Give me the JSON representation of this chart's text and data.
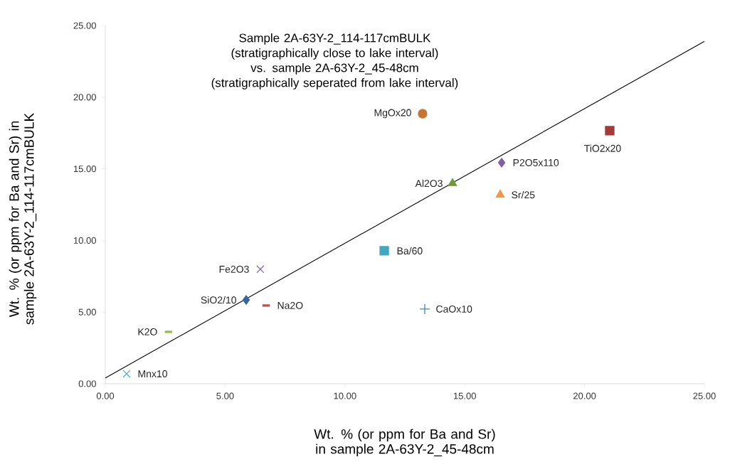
{
  "chart_data": {
    "type": "scatter",
    "title": "Sample 2A-63Y-2_114-117cmBULK (stratigraphically close to lake interval) vs. sample 2A-63Y-2_45-48cm (stratigraphically seperated from lake interval)",
    "xlabel": "Wt. % (or ppm for Ba and Sr) in sample  2A-63Y-2_45-48cm",
    "ylabel": "Wt. % (or ppm for Ba and Sr) in sample  2A-63Y-2_114-117cmBULK",
    "xlim": [
      0,
      25
    ],
    "ylim": [
      0,
      25
    ],
    "xticks": [
      {
        "value": 0,
        "label": "0.00"
      },
      {
        "value": 5,
        "label": "5.00"
      },
      {
        "value": 10,
        "label": "10.00"
      },
      {
        "value": 15,
        "label": "15.00"
      },
      {
        "value": 20,
        "label": "20.00"
      },
      {
        "value": 25,
        "label": "25.00"
      }
    ],
    "yticks": [
      {
        "value": 0,
        "label": "0.00"
      },
      {
        "value": 5,
        "label": "5.00"
      },
      {
        "value": 10,
        "label": "10.00"
      },
      {
        "value": 15,
        "label": "15.00"
      },
      {
        "value": 20,
        "label": "20.00"
      },
      {
        "value": 25,
        "label": "25.00"
      }
    ],
    "grid": false,
    "series": [
      {
        "name": "SiO2/10",
        "color": "#35669d",
        "marker": "diamond",
        "x": [
          5.88
        ],
        "values": [
          5.85
        ]
      },
      {
        "name": "Al2O3",
        "color": "#6e9a3a",
        "marker": "triangle",
        "x": [
          14.49
        ],
        "values": [
          13.99
        ]
      },
      {
        "name": "Fe2O3",
        "color": "#8064a2",
        "marker": "cross",
        "x": [
          6.47
        ],
        "values": [
          7.99
        ]
      },
      {
        "name": "MgOx20",
        "color": "#c87533",
        "marker": "circle",
        "x": [
          13.24
        ],
        "values": [
          18.85
        ]
      },
      {
        "name": "CaOx10",
        "color": "#4f81bd",
        "marker": "plus",
        "x": [
          13.33
        ],
        "values": [
          5.21
        ]
      },
      {
        "name": "Na2O",
        "color": "#c0504d",
        "x": [
          6.71
        ],
        "values": [
          5.46
        ]
      },
      {
        "name": "K2O",
        "color": "#9bbb59",
        "x": [
          2.64
        ],
        "values": [
          3.62
        ]
      },
      {
        "name": "TiO2x20",
        "color": "#a33b3b",
        "marker": "square",
        "x": [
          21.05
        ],
        "values": [
          17.66
        ]
      },
      {
        "name": "P2O5x110",
        "color": "#7d5fa6",
        "marker": "diamond",
        "x": [
          16.54
        ],
        "values": [
          15.43
        ]
      },
      {
        "name": "Mnx10",
        "color": "#4bacc6",
        "marker": "cross",
        "x": [
          0.89
        ],
        "values": [
          0.69
        ]
      },
      {
        "name": "Ba/60",
        "color": "#46a6c0",
        "marker": "square",
        "x": [
          11.64
        ],
        "values": [
          9.28
        ]
      },
      {
        "name": "Sr/25",
        "color": "#f79646",
        "marker": "triangle",
        "x": [
          16.48
        ],
        "values": [
          13.19
        ]
      },
      {
        "type": "line",
        "color": "#000000",
        "marker": "none",
        "x": [
          0,
          25
        ],
        "values": [
          0.4,
          23.9
        ]
      }
    ]
  }
}
